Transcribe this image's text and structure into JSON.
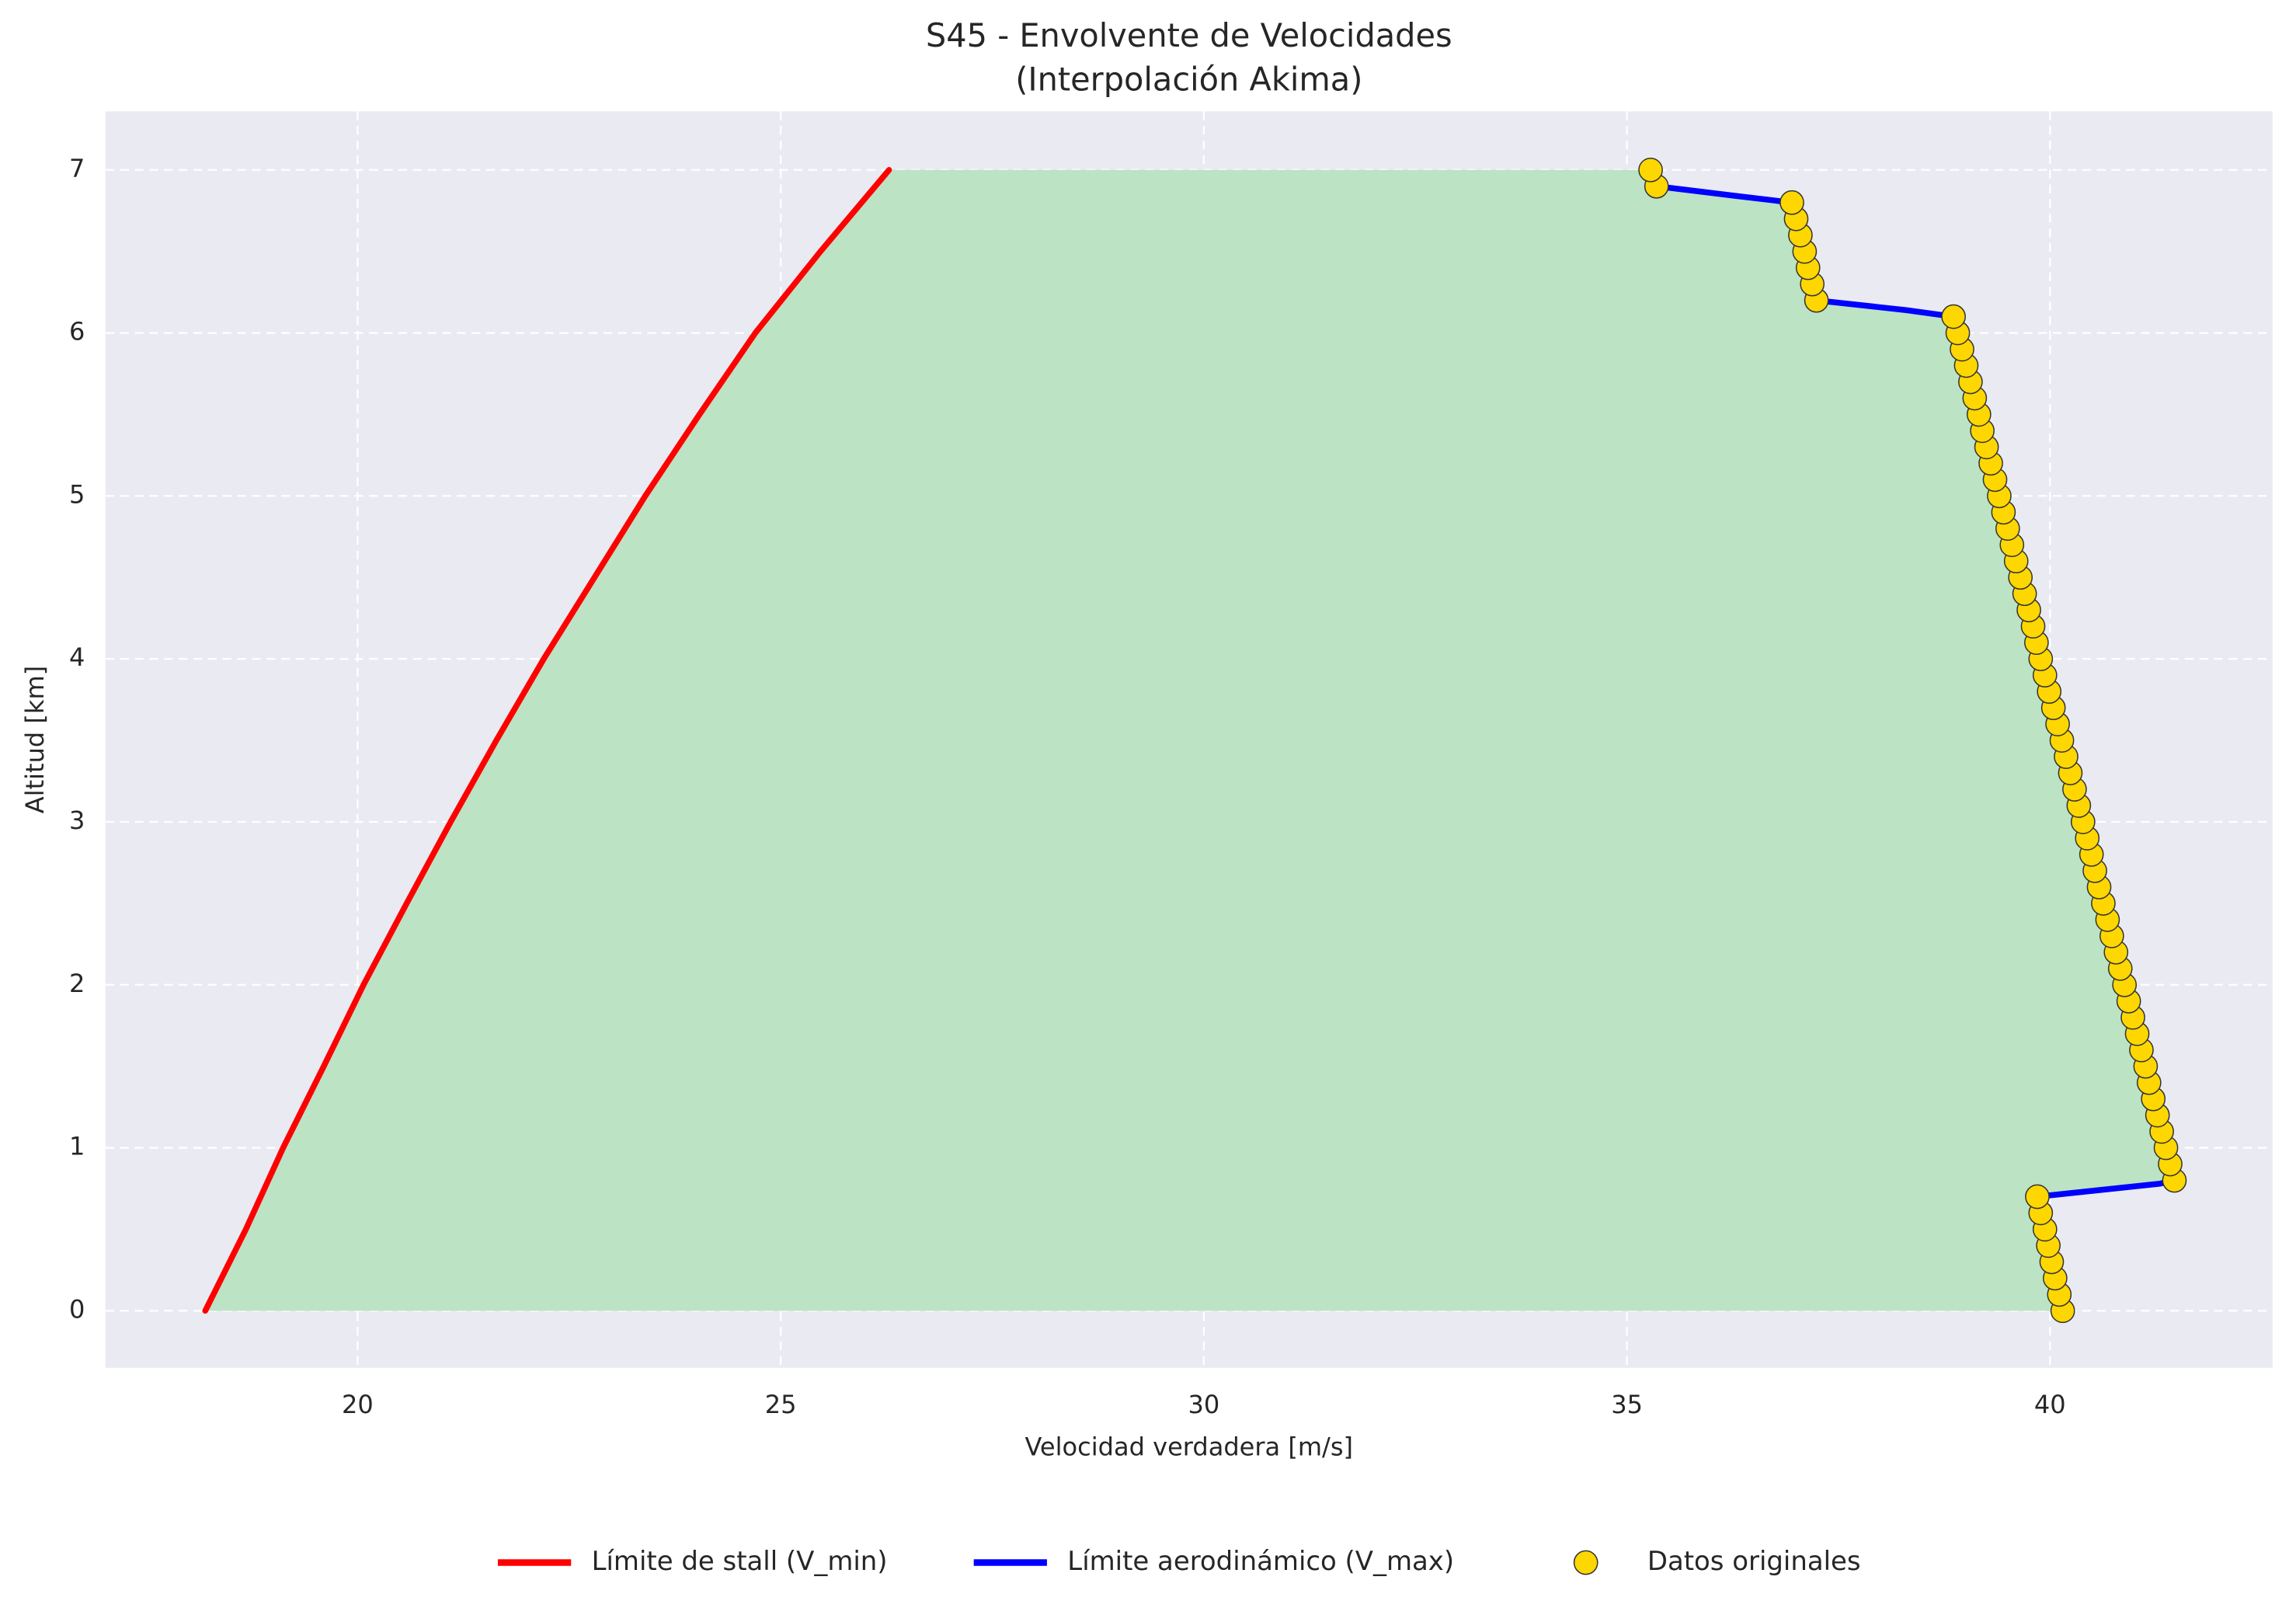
{
  "chart_data": {
    "type": "line",
    "title": "S45 - Envolvente de Velocidades",
    "subtitle": "(Interpolación Akima)",
    "x_label": "Velocidad verdadera [m/s]",
    "y_label": "Altitud [km]",
    "xlim": [
      17.02,
      42.63
    ],
    "ylim": [
      -0.35,
      7.36
    ],
    "xticks": [
      20,
      25,
      30,
      35,
      40
    ],
    "yticks": [
      0,
      1,
      2,
      3,
      4,
      5,
      6,
      7
    ],
    "grid": true,
    "legend": "bottom",
    "fill_color": "#bce3c4",
    "series": [
      {
        "name": "Límite de stall (V_min)",
        "type": "line",
        "color": "#ff0000",
        "x": [
          18.2,
          18.68,
          19.12,
          19.6,
          20.07,
          20.58,
          21.1,
          21.64,
          22.2,
          22.8,
          23.4,
          24.04,
          24.7,
          25.47,
          26.28
        ],
        "y": [
          0,
          0.5,
          1,
          1.5,
          2,
          2.5,
          3,
          3.5,
          4,
          4.5,
          5,
          5.5,
          6,
          6.5,
          7
        ]
      },
      {
        "name": "Límite aerodinámico (V_max)",
        "type": "line",
        "color": "#0000ff",
        "x": [
          40.15,
          39.85,
          41.3,
          41.47,
          38.86,
          38.3,
          37.24,
          36.95,
          36.3,
          35.35,
          35.28
        ],
        "y": [
          0,
          0.7,
          0.78,
          0.8,
          6.1,
          6.14,
          6.2,
          6.8,
          6.84,
          6.9,
          7.0
        ]
      },
      {
        "name": "Datos originales",
        "type": "scatter",
        "color": "#ffd700",
        "x": [
          40.15,
          40.11,
          40.06,
          40.02,
          39.98,
          39.94,
          39.89,
          39.85,
          41.47,
          41.42,
          41.37,
          41.32,
          41.27,
          41.22,
          41.17,
          41.13,
          41.08,
          41.03,
          40.98,
          40.93,
          40.88,
          40.83,
          40.78,
          40.73,
          40.68,
          40.63,
          40.58,
          40.53,
          40.49,
          40.44,
          40.39,
          40.34,
          40.29,
          40.24,
          40.19,
          40.14,
          40.09,
          40.04,
          39.99,
          39.94,
          39.89,
          39.84,
          39.8,
          39.75,
          39.7,
          39.65,
          39.6,
          39.55,
          39.5,
          39.45,
          39.4,
          39.35,
          39.3,
          39.25,
          39.2,
          39.16,
          39.11,
          39.06,
          39.01,
          38.96,
          38.91,
          38.86,
          37.24,
          37.19,
          37.14,
          37.1,
          37.05,
          37.0,
          36.95,
          35.35,
          35.28
        ],
        "y": [
          0,
          0.1,
          0.2,
          0.3,
          0.4,
          0.5,
          0.6,
          0.7,
          0.8,
          0.9,
          1.0,
          1.1,
          1.2,
          1.3,
          1.4,
          1.5,
          1.6,
          1.7,
          1.8,
          1.9,
          2.0,
          2.1,
          2.2,
          2.3,
          2.4,
          2.5,
          2.6,
          2.7,
          2.8,
          2.9,
          3.0,
          3.1,
          3.2,
          3.3,
          3.4,
          3.5,
          3.6,
          3.7,
          3.8,
          3.9,
          4.0,
          4.1,
          4.2,
          4.3,
          4.4,
          4.5,
          4.6,
          4.7,
          4.8,
          4.9,
          5.0,
          5.1,
          5.2,
          5.3,
          5.4,
          5.5,
          5.6,
          5.7,
          5.8,
          5.9,
          6.0,
          6.1,
          6.2,
          6.3,
          6.4,
          6.5,
          6.6,
          6.7,
          6.8,
          6.9,
          7.0
        ]
      }
    ]
  }
}
